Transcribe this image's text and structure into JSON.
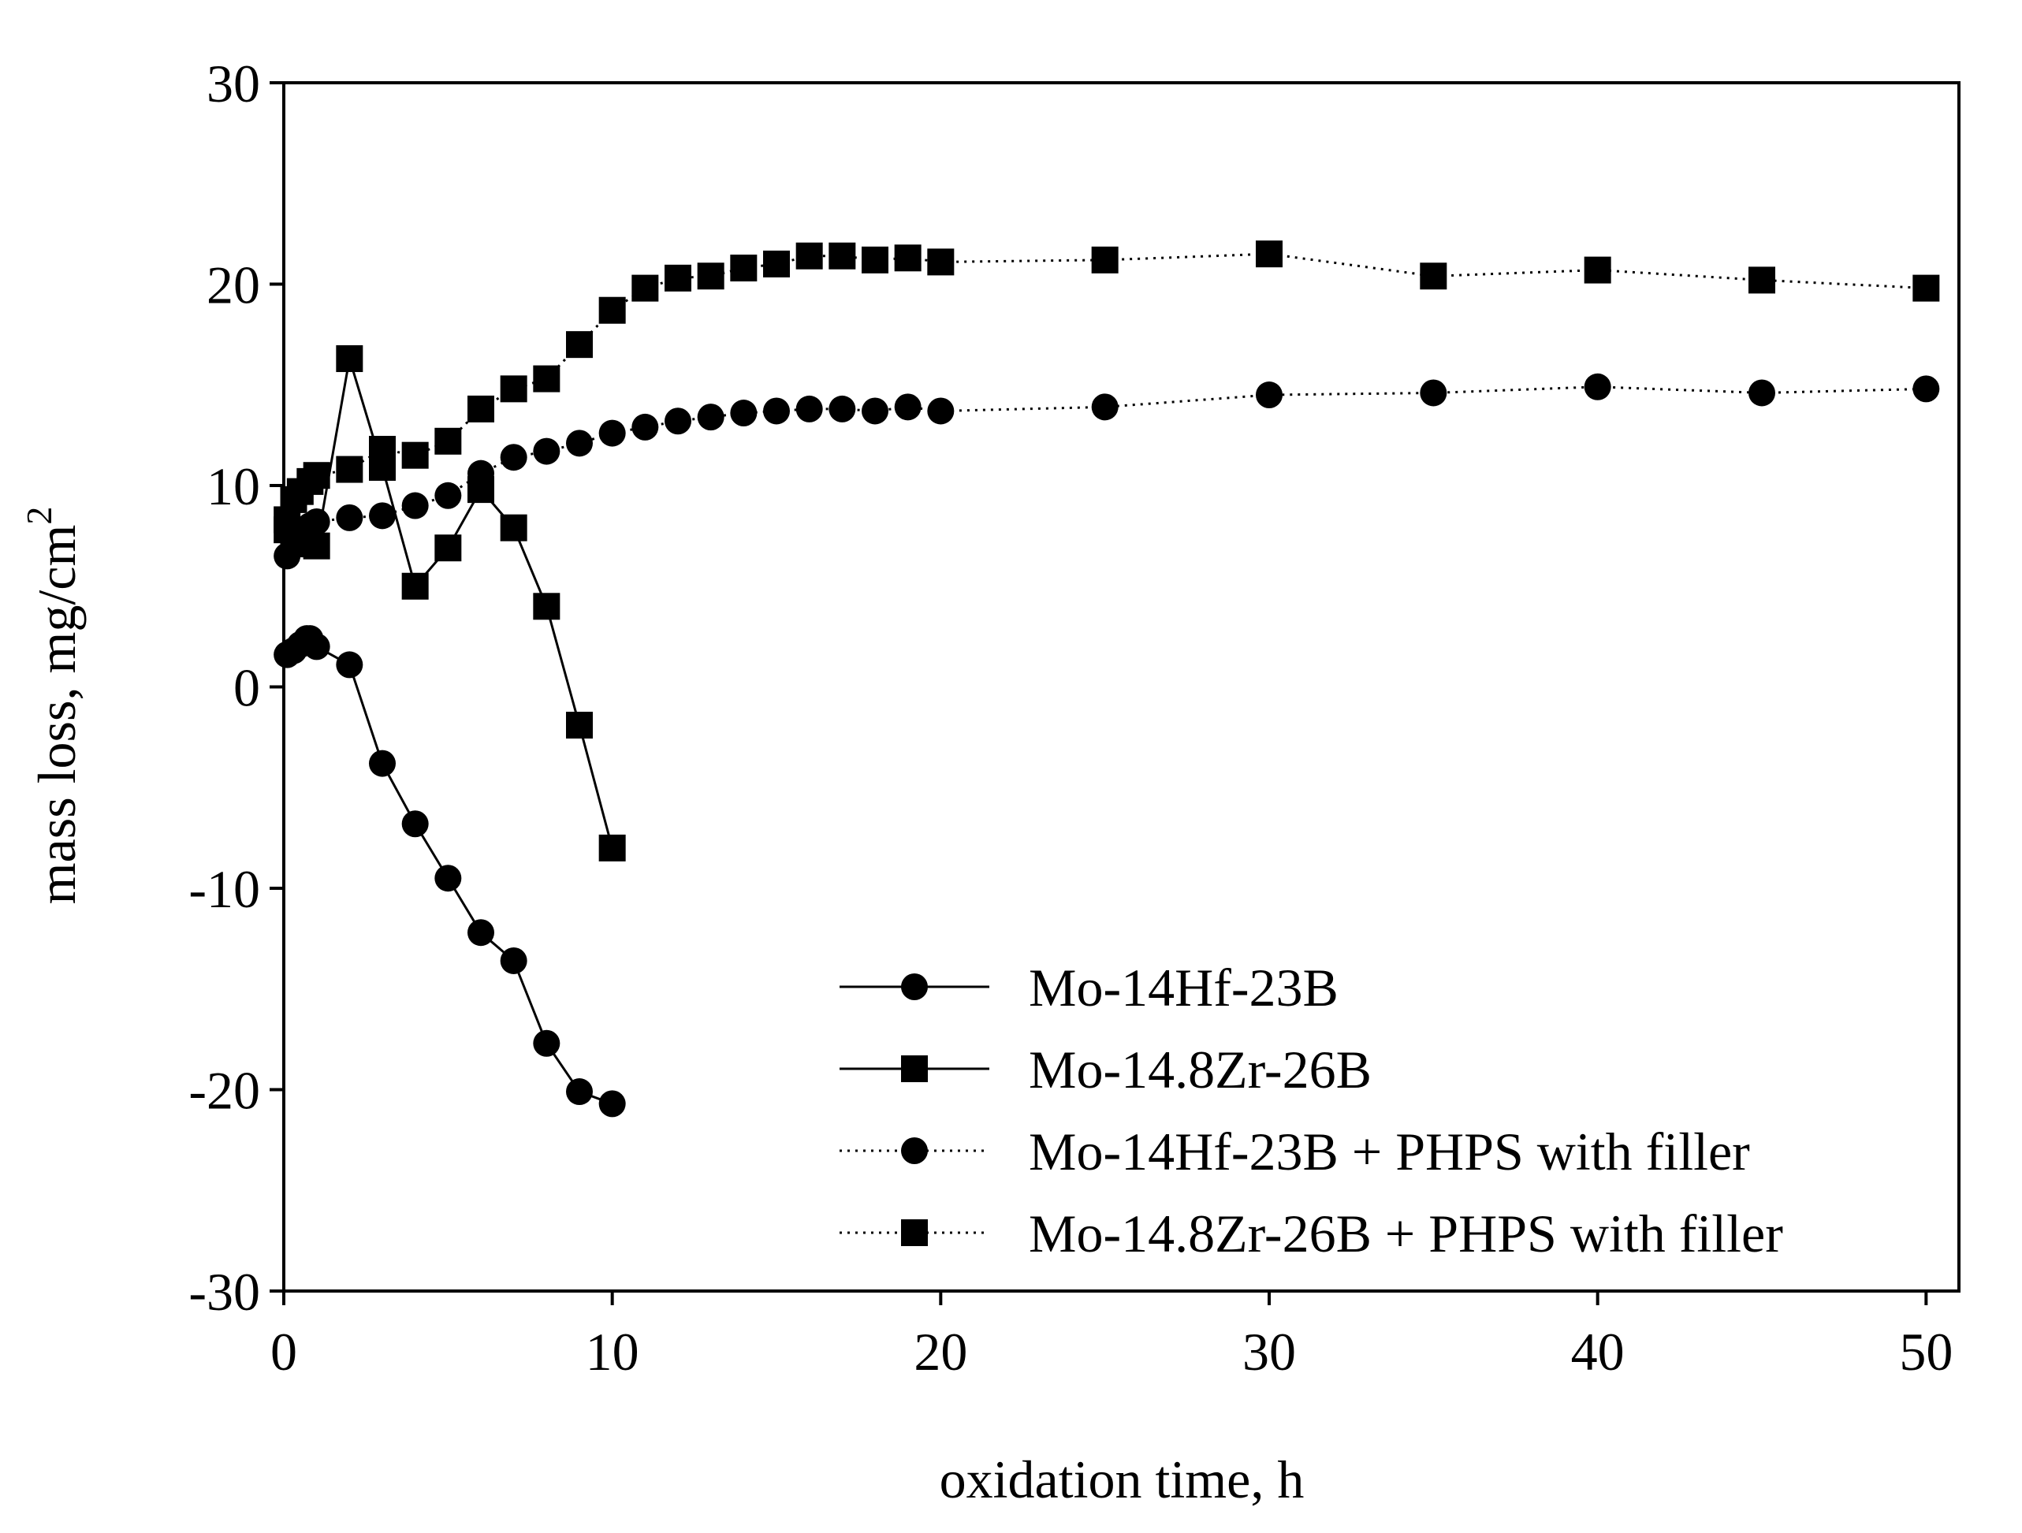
{
  "chart_data": {
    "type": "line",
    "title": "",
    "xlabel": "oxidation time, h",
    "ylabel": "mass loss, mg/cm",
    "ylabel_superscript": "2",
    "xlim": [
      0,
      51
    ],
    "ylim": [
      -30,
      30
    ],
    "xticks": [
      0,
      10,
      20,
      30,
      40,
      50
    ],
    "yticks": [
      30,
      20,
      10,
      0,
      -10,
      -20,
      -30
    ],
    "grid": false,
    "legend_position": "bottom-right",
    "series": [
      {
        "name": "Mo-14Hf-23B",
        "marker": "circle",
        "line": "solid",
        "x": [
          0.1,
          0.3,
          0.5,
          0.7,
          0.8,
          1,
          2,
          3,
          4,
          5,
          6,
          7,
          8,
          9,
          10
        ],
        "y": [
          1.6,
          1.8,
          2.1,
          2.4,
          2.4,
          2.0,
          1.1,
          -3.8,
          -6.8,
          -9.5,
          -12.2,
          -13.6,
          -17.7,
          -20.1,
          -20.7
        ]
      },
      {
        "name": "Mo-14.8Zr-26B",
        "marker": "square",
        "line": "solid",
        "x": [
          0.1,
          0.3,
          0.5,
          0.7,
          1,
          2,
          3,
          4,
          5,
          6,
          7,
          8,
          9,
          10
        ],
        "y": [
          7.8,
          7.6,
          7.4,
          7.1,
          7.0,
          16.3,
          10.9,
          5.0,
          6.9,
          9.8,
          7.9,
          4.0,
          -1.9,
          -8.0
        ]
      },
      {
        "name": "Mo-14Hf-23B + PHPS with filler",
        "marker": "circle",
        "line": "dotted",
        "x": [
          0.1,
          0.3,
          0.5,
          0.8,
          1,
          2,
          3,
          4,
          5,
          6,
          7,
          8,
          9,
          10,
          11,
          12,
          13,
          14,
          15,
          16,
          17,
          18,
          19,
          20,
          25,
          30,
          35,
          40,
          45,
          50
        ],
        "y": [
          6.5,
          7.2,
          7.8,
          8.0,
          8.2,
          8.4,
          8.5,
          9.0,
          9.5,
          10.6,
          11.4,
          11.7,
          12.1,
          12.6,
          12.9,
          13.2,
          13.4,
          13.6,
          13.7,
          13.8,
          13.8,
          13.7,
          13.9,
          13.7,
          13.9,
          14.5,
          14.6,
          14.9,
          14.6,
          14.8
        ]
      },
      {
        "name": "Mo-14.8Zr-26B + PHPS with filler",
        "marker": "square",
        "line": "dotted",
        "x": [
          0.1,
          0.3,
          0.5,
          0.8,
          1,
          2,
          3,
          4,
          5,
          6,
          7,
          8,
          9,
          10,
          11,
          12,
          13,
          14,
          15,
          16,
          17,
          18,
          19,
          20,
          25,
          30,
          35,
          40,
          45,
          50
        ],
        "y": [
          8.3,
          9.3,
          9.7,
          10.2,
          10.5,
          10.8,
          11.8,
          11.5,
          12.2,
          13.8,
          14.8,
          15.3,
          17.0,
          18.7,
          19.8,
          20.3,
          20.4,
          20.8,
          21.0,
          21.4,
          21.4,
          21.2,
          21.3,
          21.1,
          21.2,
          21.5,
          20.4,
          20.7,
          20.2,
          19.8
        ]
      }
    ]
  }
}
